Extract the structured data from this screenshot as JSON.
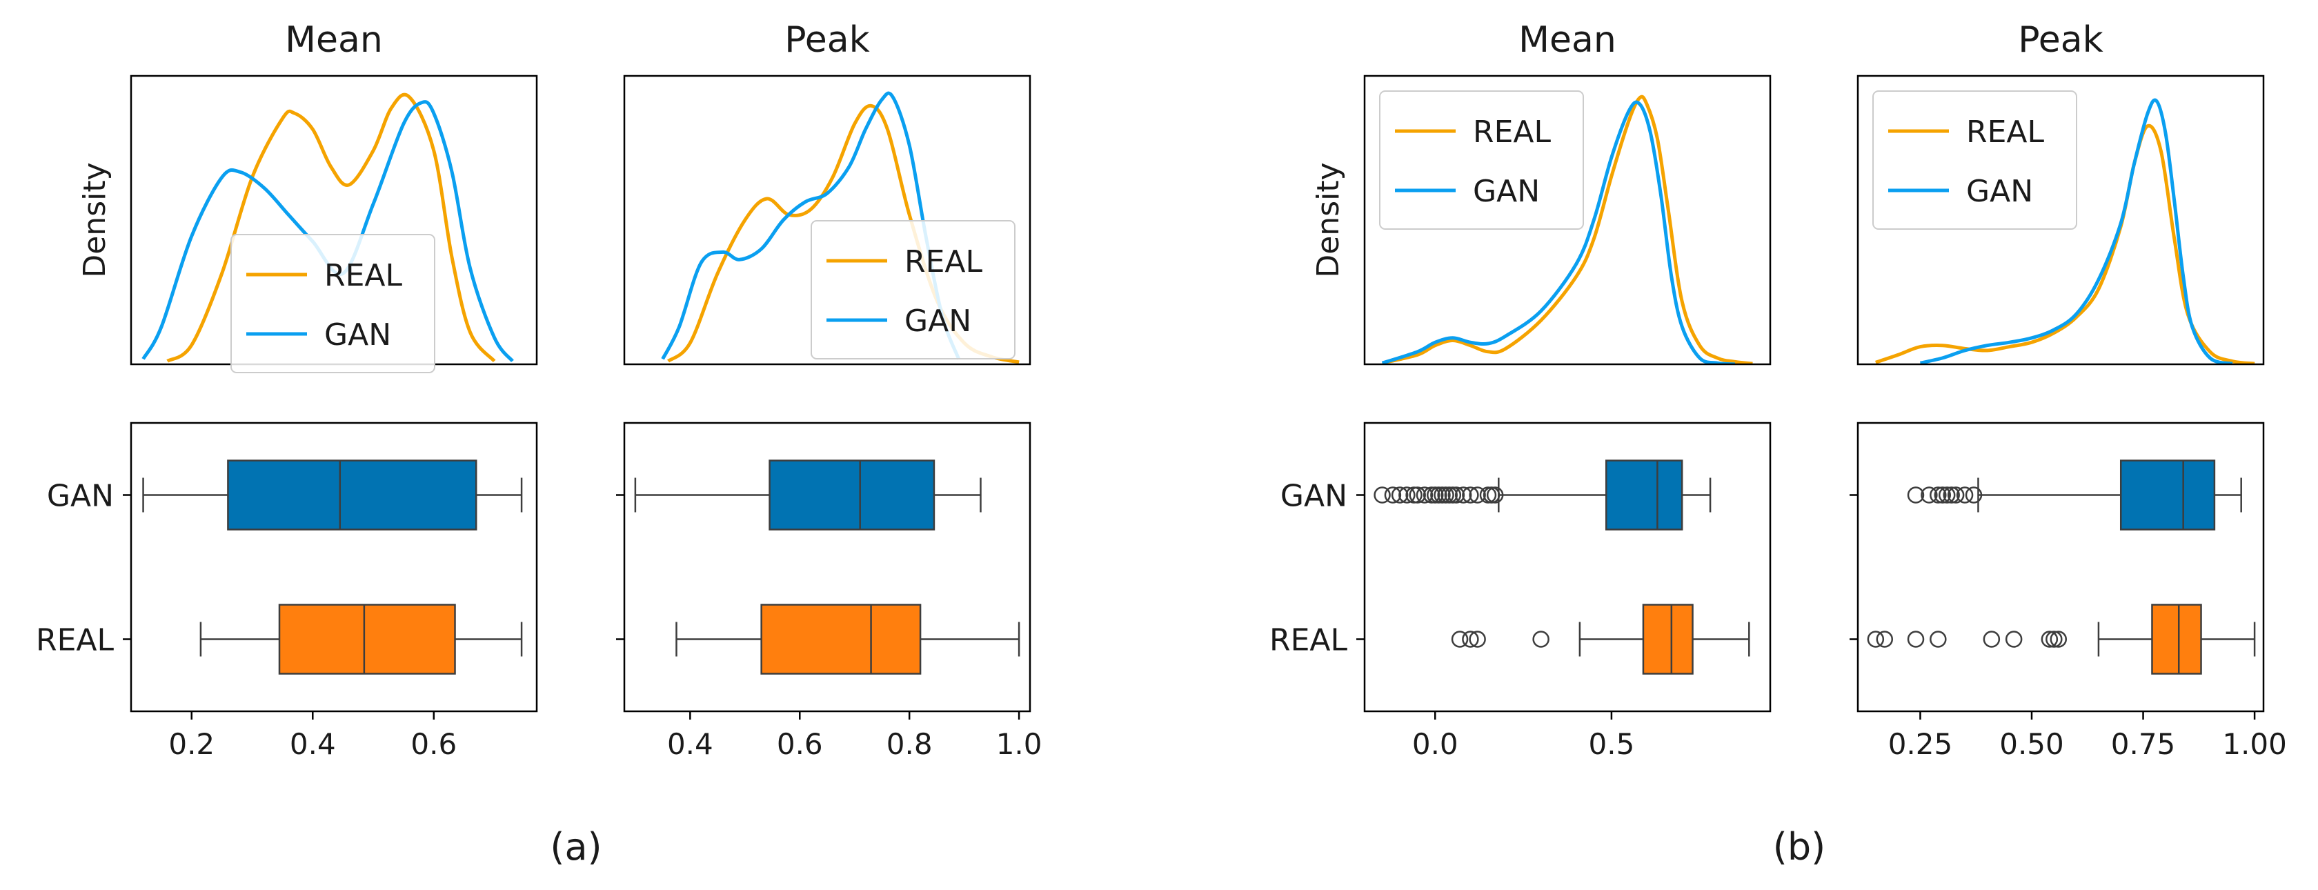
{
  "figure": {
    "panel_labels": [
      "(a)",
      "(b)"
    ],
    "legend_labels": [
      "REAL",
      "GAN"
    ],
    "colors": {
      "real_line": "#f5a300",
      "gan_line": "#0a9ff0",
      "real_box": "#ff7f0e",
      "gan_box": "#0173b2",
      "axis": "#000000"
    }
  },
  "chart_data": [
    {
      "panel": "(a)",
      "title": "Mean",
      "type": "area",
      "ylabel": "Density",
      "legend": "center-right",
      "x_range": [
        0.1,
        0.77
      ],
      "y_range": [
        0,
        2.7
      ],
      "series": [
        {
          "name": "REAL",
          "x": [
            0.16,
            0.2,
            0.25,
            0.3,
            0.35,
            0.37,
            0.4,
            0.43,
            0.46,
            0.5,
            0.53,
            0.56,
            0.6,
            0.63,
            0.66,
            0.7
          ],
          "y": [
            0.03,
            0.18,
            0.85,
            1.75,
            2.3,
            2.35,
            2.2,
            1.85,
            1.68,
            2.0,
            2.4,
            2.5,
            2.0,
            1.0,
            0.3,
            0.03
          ]
        },
        {
          "name": "GAN",
          "x": [
            0.12,
            0.15,
            0.2,
            0.25,
            0.28,
            0.32,
            0.36,
            0.4,
            0.45,
            0.5,
            0.55,
            0.58,
            0.6,
            0.63,
            0.66,
            0.7,
            0.73
          ],
          "y": [
            0.05,
            0.35,
            1.2,
            1.75,
            1.8,
            1.65,
            1.4,
            1.15,
            0.85,
            1.5,
            2.25,
            2.45,
            2.35,
            1.8,
            0.9,
            0.25,
            0.03
          ]
        }
      ]
    },
    {
      "panel": "(a)",
      "title": "Peak",
      "type": "area",
      "legend": "center-right",
      "x_range": [
        0.28,
        1.02
      ],
      "y_range": [
        0,
        2.7
      ],
      "series": [
        {
          "name": "REAL",
          "x": [
            0.36,
            0.4,
            0.45,
            0.5,
            0.54,
            0.58,
            0.62,
            0.66,
            0.7,
            0.73,
            0.76,
            0.8,
            0.85,
            0.9,
            0.95,
            1.0
          ],
          "y": [
            0.03,
            0.2,
            0.85,
            1.35,
            1.55,
            1.4,
            1.45,
            1.75,
            2.25,
            2.42,
            2.2,
            1.4,
            0.6,
            0.2,
            0.07,
            0.02
          ]
        },
        {
          "name": "GAN",
          "x": [
            0.35,
            0.38,
            0.42,
            0.46,
            0.49,
            0.53,
            0.57,
            0.61,
            0.65,
            0.69,
            0.72,
            0.75,
            0.77,
            0.8,
            0.83,
            0.86,
            0.89
          ],
          "y": [
            0.05,
            0.35,
            0.95,
            1.05,
            0.98,
            1.08,
            1.35,
            1.52,
            1.6,
            1.85,
            2.2,
            2.48,
            2.5,
            2.05,
            1.2,
            0.45,
            0.05
          ]
        }
      ]
    },
    {
      "panel": "(a)",
      "title": "Mean",
      "type": "box",
      "x_range": [
        0.1,
        0.77
      ],
      "xticks": [
        "0.2",
        "0.4",
        "0.6"
      ],
      "xtick_values": [
        0.2,
        0.4,
        0.6
      ],
      "categories": [
        "GAN",
        "REAL"
      ],
      "boxes": [
        {
          "name": "GAN",
          "whislo": 0.12,
          "q1": 0.26,
          "med": 0.445,
          "q3": 0.67,
          "whishi": 0.745,
          "fliers": []
        },
        {
          "name": "REAL",
          "whislo": 0.215,
          "q1": 0.345,
          "med": 0.485,
          "q3": 0.635,
          "whishi": 0.745,
          "fliers": []
        }
      ]
    },
    {
      "panel": "(a)",
      "title": "Peak",
      "type": "box",
      "x_range": [
        0.28,
        1.02
      ],
      "xticks": [
        "0.4",
        "0.6",
        "0.8",
        "1.0"
      ],
      "xtick_values": [
        0.4,
        0.6,
        0.8,
        1.0
      ],
      "categories": [
        "GAN",
        "REAL"
      ],
      "boxes": [
        {
          "name": "GAN",
          "whislo": 0.3,
          "q1": 0.545,
          "med": 0.71,
          "q3": 0.845,
          "whishi": 0.93,
          "fliers": []
        },
        {
          "name": "REAL",
          "whislo": 0.375,
          "q1": 0.53,
          "med": 0.73,
          "q3": 0.82,
          "whishi": 1.0,
          "fliers": []
        }
      ]
    },
    {
      "panel": "(b)",
      "title": "Mean",
      "type": "area",
      "ylabel": "Density",
      "legend": "upper-left",
      "x_range": [
        -0.2,
        0.95
      ],
      "y_range": [
        0,
        4.6
      ],
      "series": [
        {
          "name": "REAL",
          "x": [
            -0.15,
            -0.05,
            0.0,
            0.05,
            0.1,
            0.15,
            0.2,
            0.3,
            0.4,
            0.45,
            0.5,
            0.55,
            0.58,
            0.6,
            0.63,
            0.66,
            0.7,
            0.75,
            0.8,
            0.85,
            0.9
          ],
          "y": [
            0.02,
            0.15,
            0.3,
            0.38,
            0.3,
            0.2,
            0.25,
            0.7,
            1.4,
            2.0,
            3.0,
            3.9,
            4.25,
            4.15,
            3.6,
            2.5,
            1.0,
            0.3,
            0.1,
            0.04,
            0.01
          ]
        },
        {
          "name": "GAN",
          "x": [
            -0.15,
            -0.05,
            0.0,
            0.05,
            0.1,
            0.15,
            0.2,
            0.3,
            0.4,
            0.45,
            0.5,
            0.55,
            0.58,
            0.61,
            0.64,
            0.67,
            0.7,
            0.75,
            0.8,
            0.85
          ],
          "y": [
            0.02,
            0.2,
            0.35,
            0.42,
            0.35,
            0.33,
            0.45,
            0.85,
            1.6,
            2.3,
            3.3,
            4.05,
            4.15,
            3.7,
            2.7,
            1.4,
            0.6,
            0.1,
            0.02,
            0.0
          ]
        }
      ]
    },
    {
      "panel": "(b)",
      "title": "Peak",
      "type": "area",
      "ylabel": "",
      "legend": "upper-left",
      "x_range": [
        0.11,
        1.02
      ],
      "y_range": [
        0,
        4.6
      ],
      "series": [
        {
          "name": "REAL",
          "x": [
            0.15,
            0.2,
            0.25,
            0.3,
            0.35,
            0.4,
            0.45,
            0.5,
            0.55,
            0.6,
            0.65,
            0.7,
            0.73,
            0.76,
            0.79,
            0.82,
            0.85,
            0.9,
            0.95,
            1.0
          ],
          "y": [
            0.03,
            0.15,
            0.28,
            0.3,
            0.25,
            0.22,
            0.28,
            0.35,
            0.5,
            0.75,
            1.2,
            2.2,
            3.2,
            3.8,
            3.4,
            2.0,
            0.8,
            0.2,
            0.05,
            0.01
          ]
        },
        {
          "name": "GAN",
          "x": [
            0.25,
            0.3,
            0.35,
            0.4,
            0.45,
            0.5,
            0.55,
            0.6,
            0.65,
            0.7,
            0.73,
            0.76,
            0.78,
            0.8,
            0.82,
            0.84,
            0.86,
            0.9,
            0.95
          ],
          "y": [
            0.02,
            0.1,
            0.22,
            0.3,
            0.35,
            0.42,
            0.55,
            0.8,
            1.35,
            2.25,
            3.2,
            4.0,
            4.2,
            3.7,
            2.6,
            1.4,
            0.6,
            0.1,
            0.01
          ]
        }
      ]
    },
    {
      "panel": "(b)",
      "title": "Mean",
      "type": "box",
      "x_range": [
        -0.2,
        0.95
      ],
      "xticks": [
        "0.0",
        "0.5"
      ],
      "xtick_values": [
        0.0,
        0.5
      ],
      "categories": [
        "GAN",
        "REAL"
      ],
      "boxes": [
        {
          "name": "GAN",
          "whislo": 0.18,
          "q1": 0.485,
          "med": 0.63,
          "q3": 0.7,
          "whishi": 0.78,
          "fliers": [
            -0.15,
            -0.12,
            -0.1,
            -0.08,
            -0.06,
            -0.05,
            -0.03,
            -0.01,
            0.0,
            0.01,
            0.02,
            0.03,
            0.04,
            0.05,
            0.06,
            0.08,
            0.1,
            0.12,
            0.15,
            0.16,
            0.17
          ]
        },
        {
          "name": "REAL",
          "whislo": 0.41,
          "q1": 0.59,
          "med": 0.67,
          "q3": 0.73,
          "whishi": 0.89,
          "fliers": [
            0.07,
            0.1,
            0.12,
            0.3
          ]
        }
      ]
    },
    {
      "panel": "(b)",
      "title": "Peak",
      "type": "box",
      "x_range": [
        0.11,
        1.02
      ],
      "xticks": [
        "0.25",
        "0.50",
        "0.75",
        "1.00"
      ],
      "xtick_values": [
        0.25,
        0.5,
        0.75,
        1.0
      ],
      "categories": [
        "GAN",
        "REAL"
      ],
      "boxes": [
        {
          "name": "GAN",
          "whislo": 0.38,
          "q1": 0.7,
          "med": 0.84,
          "q3": 0.91,
          "whishi": 0.97,
          "fliers": [
            0.24,
            0.27,
            0.29,
            0.3,
            0.31,
            0.32,
            0.33,
            0.35,
            0.37
          ]
        },
        {
          "name": "REAL",
          "whislo": 0.65,
          "q1": 0.77,
          "med": 0.83,
          "q3": 0.88,
          "whishi": 1.0,
          "fliers": [
            0.15,
            0.17,
            0.24,
            0.29,
            0.41,
            0.46,
            0.54,
            0.55,
            0.56
          ]
        }
      ]
    }
  ]
}
